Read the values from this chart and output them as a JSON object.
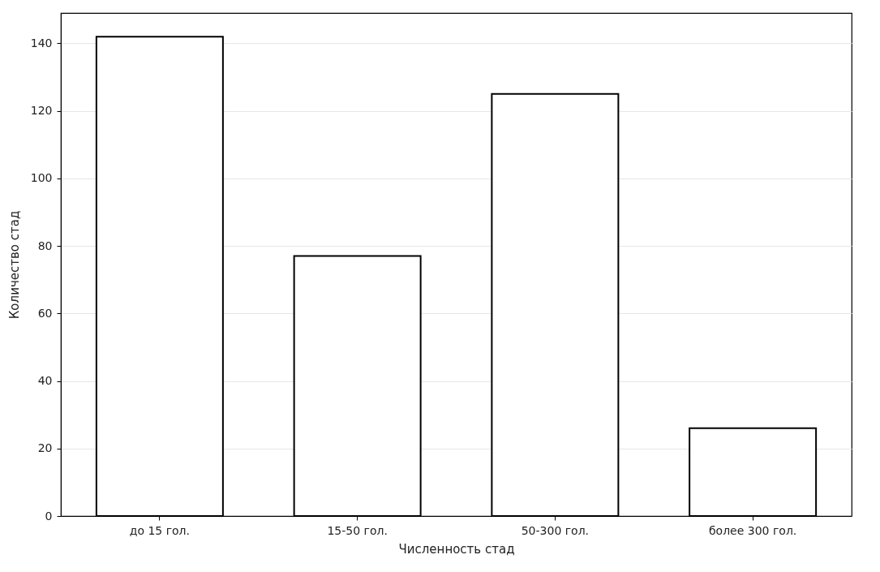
{
  "chart_data": {
    "type": "bar",
    "xlabel": "Численность стад",
    "ylabel": "Количество стад",
    "categories": [
      "до 15 гол.",
      "15-50 гол.",
      "50-300 гол.",
      "более 300 гол."
    ],
    "values": [
      142,
      77,
      125,
      26
    ],
    "color": "#ffffff",
    "ylim": [
      0,
      149
    ],
    "yticks": [
      0,
      20,
      40,
      60,
      80,
      100,
      120,
      140
    ],
    "grid": "y"
  }
}
